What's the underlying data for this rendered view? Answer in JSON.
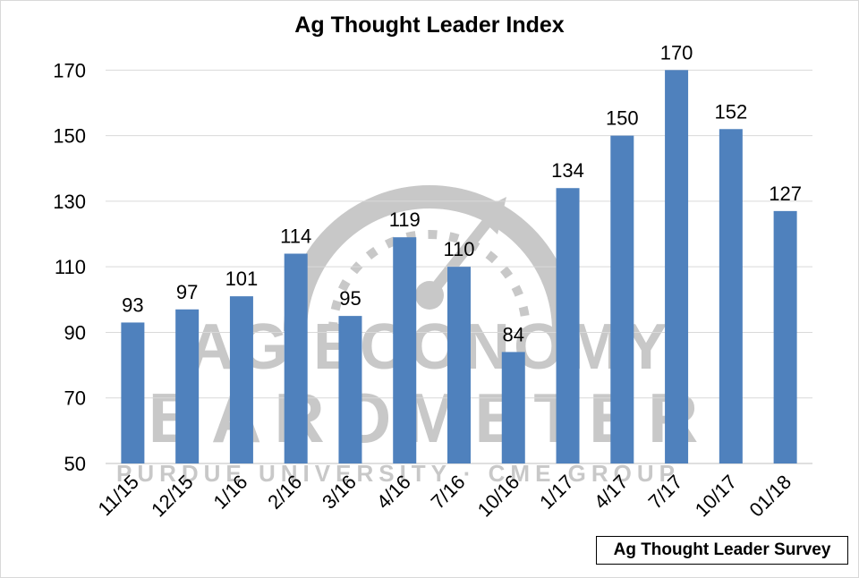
{
  "chart_data": {
    "type": "bar",
    "title": "Ag Thought Leader Index",
    "categories": [
      "11/15",
      "12/15",
      "1/16",
      "2/16",
      "3/16",
      "4/16",
      "7/16",
      "10/16",
      "1/17",
      "4/17",
      "7/17",
      "10/17",
      "01/18"
    ],
    "values": [
      93,
      97,
      101,
      114,
      95,
      119,
      110,
      84,
      134,
      150,
      170,
      152,
      127
    ],
    "ylim": [
      50,
      175
    ],
    "yticks": [
      50,
      70,
      90,
      110,
      130,
      150,
      170
    ],
    "grid": true,
    "bar_color": "#4f81bd",
    "data_labels": true
  },
  "source_label": "Ag Thought Leader Survey",
  "watermark": {
    "line1": "AG ECONOMY",
    "line2": "BAROMETER",
    "line3": "PURDUE UNIVERSITY · CME GROUP",
    "color": "#c8c8c8"
  }
}
